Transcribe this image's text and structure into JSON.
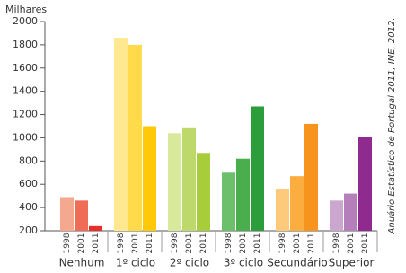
{
  "chart_data": {
    "type": "bar",
    "y_label": "Milhares",
    "source": "Anuário Estatístico de Portugal 2011, INE, 2012.",
    "categories": [
      "Nenhum",
      "1º ciclo",
      "2º ciclo",
      "3º ciclo",
      "Secundário",
      "Superior"
    ],
    "series": [
      {
        "name": "1998",
        "colors": [
          "#f5a890",
          "#ffe88f",
          "#d9e99b",
          "#6cc06b",
          "#fdc97a",
          "#cba6ce"
        ],
        "values": [
          490,
          1860,
          1040,
          700,
          560,
          460
        ]
      },
      {
        "name": "2001",
        "colors": [
          "#ef6c56",
          "#ffdb4c",
          "#bed96b",
          "#4aae4f",
          "#fbad40",
          "#b47fbb"
        ],
        "values": [
          460,
          1800,
          1090,
          820,
          670,
          520
        ]
      },
      {
        "name": "2011",
        "colors": [
          "#e8302a",
          "#ffc90a",
          "#a8cd3b",
          "#2b9e3b",
          "#f7941d",
          "#8f2a8f"
        ],
        "values": [
          240,
          1100,
          870,
          1270,
          1120,
          1010
        ]
      }
    ],
    "ylim": [
      200,
      2000
    ],
    "yticks": [
      200,
      400,
      600,
      800,
      1000,
      1200,
      1400,
      1600,
      1800,
      2000
    ]
  }
}
